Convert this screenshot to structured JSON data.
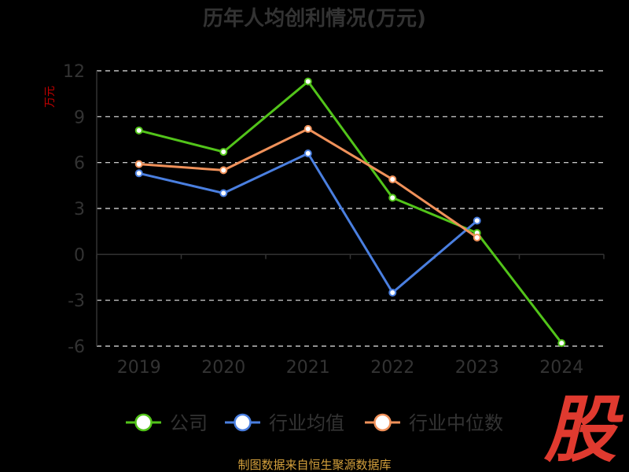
{
  "chart_data": {
    "type": "line",
    "title": "历年人均创利情况(万元)",
    "ylabel": "万元",
    "xlabel": "",
    "categories": [
      "2019",
      "2020",
      "2021",
      "2022",
      "2023",
      "2024"
    ],
    "ylim": [
      -6,
      12
    ],
    "yticks": [
      12,
      9,
      6,
      3,
      0,
      -3,
      -6
    ],
    "grid": true,
    "legend_position": "bottom",
    "series": [
      {
        "name": "公司",
        "color": "#52C41A",
        "values": [
          8.1,
          6.7,
          11.3,
          3.7,
          1.4,
          -5.8
        ]
      },
      {
        "name": "行业均值",
        "color": "#4A7FE0",
        "values": [
          5.3,
          4.0,
          6.6,
          -2.5,
          2.2,
          null
        ]
      },
      {
        "name": "行业中位数",
        "color": "#F0915A",
        "values": [
          5.9,
          5.5,
          8.2,
          4.9,
          1.1,
          null
        ]
      }
    ]
  },
  "source_text": "制图数据来自恒生聚源数据库",
  "watermark_text": "股"
}
